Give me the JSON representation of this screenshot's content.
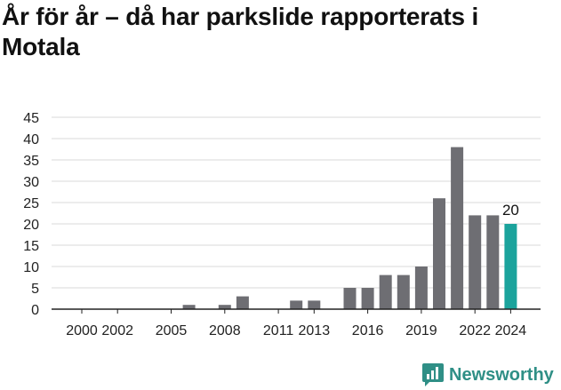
{
  "title": "År för år – då har parkslide rapporterats i Motala",
  "brand": {
    "name": "Newsworthy",
    "color": "#2f8f86"
  },
  "colors": {
    "bar": "#6e6e73",
    "highlight": "#1ba39c",
    "grid": "#d9d9d9",
    "axis": "#222222"
  },
  "chart_data": {
    "type": "bar",
    "title": "År för år – då har parkslide rapporterats i Motala",
    "xlabel": "",
    "ylabel": "",
    "categories": [
      2000,
      2001,
      2002,
      2003,
      2004,
      2005,
      2006,
      2007,
      2008,
      2009,
      2010,
      2011,
      2012,
      2013,
      2014,
      2015,
      2016,
      2017,
      2018,
      2019,
      2020,
      2021,
      2022,
      2023,
      2024
    ],
    "values": [
      0,
      0,
      0,
      0,
      0,
      0,
      1,
      0,
      1,
      3,
      0,
      0,
      2,
      2,
      0,
      5,
      5,
      8,
      8,
      10,
      26,
      38,
      22,
      22,
      20
    ],
    "highlight": {
      "category": 2024,
      "label": "20"
    },
    "xtick_labels": [
      {
        "x": 2000,
        "label": "2000"
      },
      {
        "x": 2002,
        "label": "2002"
      },
      {
        "x": 2005,
        "label": "2005"
      },
      {
        "x": 2008,
        "label": "2008"
      },
      {
        "x": 2011,
        "label": "2011"
      },
      {
        "x": 2013,
        "label": "2013"
      },
      {
        "x": 2016,
        "label": "2016"
      },
      {
        "x": 2019,
        "label": "2019"
      },
      {
        "x": 2022,
        "label": "2022"
      },
      {
        "x": 2024,
        "label": "2024"
      }
    ],
    "yticks": [
      0,
      5,
      10,
      15,
      20,
      25,
      30,
      35,
      40,
      45
    ],
    "ylim": [
      0,
      45
    ],
    "grid": true,
    "legend": "none"
  }
}
